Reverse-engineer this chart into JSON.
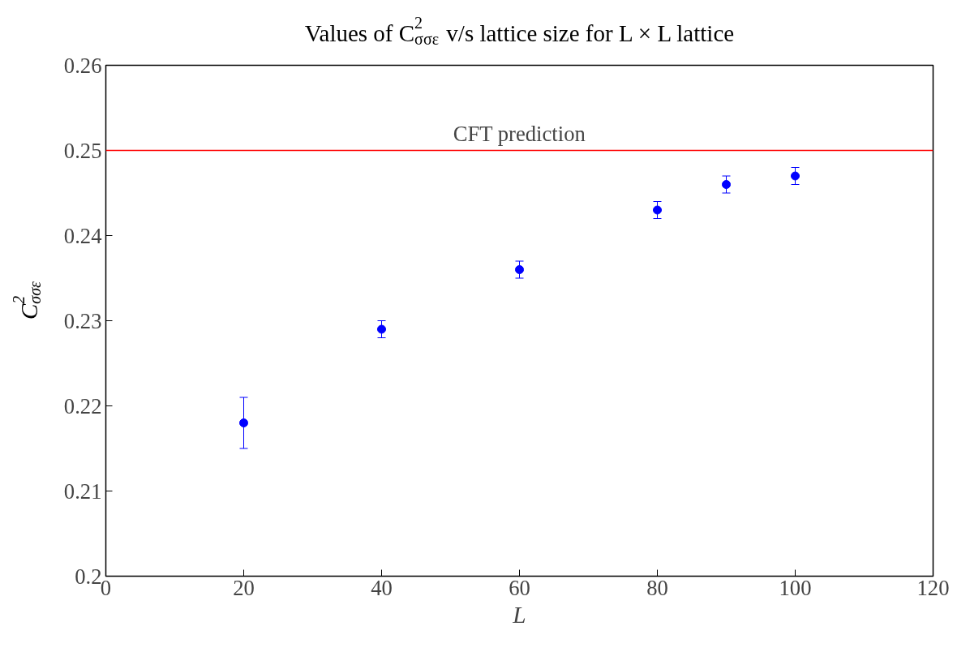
{
  "chart_data": {
    "type": "scatter",
    "title": "Values of C$^{2}$$_{σσε}$ v/s lattice size for L × L lattice",
    "xlabel": "L",
    "ylabel": "C$^{2}$$_{σσε}$",
    "x": [
      20,
      40,
      60,
      80,
      90,
      100
    ],
    "series": [
      {
        "color": "#0000ff",
        "values": [
          0.218,
          0.229,
          0.236,
          0.243,
          0.246,
          0.247
        ],
        "errors": [
          0.003,
          0.001,
          0.001,
          0.001,
          0.001,
          0.001
        ]
      }
    ],
    "xlim": [
      0,
      120
    ],
    "xticks": [
      0,
      20,
      40,
      60,
      80,
      100,
      120
    ],
    "ylim": [
      0.2,
      0.26
    ],
    "yticks": [
      0.2,
      0.21,
      0.22,
      0.23,
      0.24,
      0.25,
      0.26
    ],
    "ref_lines": [
      {
        "axis": "y",
        "value": 0.25,
        "label": "CFT prediction",
        "color": "#ff0000"
      }
    ],
    "marker": "circle",
    "grid": false
  }
}
